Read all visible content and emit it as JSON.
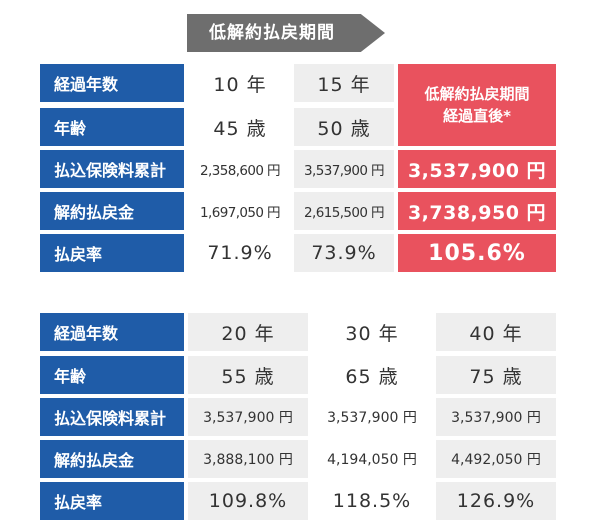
{
  "arrow": {
    "label": "低解約払戻期間"
  },
  "table1": {
    "row_labels": [
      "経過年数",
      "年齢",
      "払込保険料累計",
      "解約払戻金",
      "払戻率"
    ],
    "columns": [
      {
        "years": "10 年",
        "age": "45 歳",
        "premium": "2,358,600 円",
        "refund": "1,697,050 円",
        "rate": "71.9%"
      },
      {
        "years": "15 年",
        "age": "50 歳",
        "premium": "3,537,900 円",
        "refund": "2,615,500 円",
        "rate": "73.9%"
      }
    ],
    "highlight": {
      "header_line1": "低解約払戻期間",
      "header_line2": "経過直後*",
      "premium": "3,537,900 円",
      "refund": "3,738,950 円",
      "rate": "105.6%"
    }
  },
  "table2": {
    "row_labels": [
      "経過年数",
      "年齢",
      "払込保険料累計",
      "解約払戻金",
      "払戻率"
    ],
    "columns": [
      {
        "years": "20 年",
        "age": "55 歳",
        "premium": "3,537,900 円",
        "refund": "3,888,100 円",
        "rate": "109.8%"
      },
      {
        "years": "30 年",
        "age": "65 歳",
        "premium": "3,537,900 円",
        "refund": "4,194,050 円",
        "rate": "118.5%"
      },
      {
        "years": "40 年",
        "age": "75 歳",
        "premium": "3,537,900 円",
        "refund": "4,492,050 円",
        "rate": "126.9%"
      }
    ]
  },
  "colors": {
    "label_bg": "#1f5ca8",
    "highlight_bg": "#e9525e",
    "grey_bg": "#eeeeee",
    "arrow": "#6e6e6e"
  }
}
